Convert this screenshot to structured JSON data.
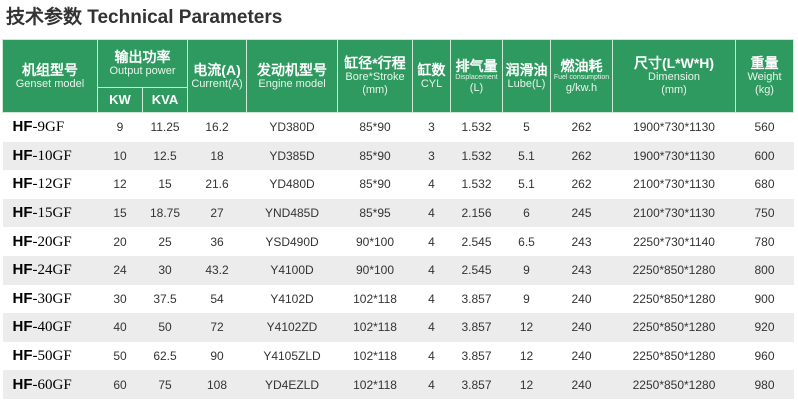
{
  "title": "技术参数 Technical Parameters",
  "colors": {
    "header_bg": "#2f9a60",
    "row_alt": "#ececec"
  },
  "headers": {
    "model": {
      "cn": "机组型号",
      "en": "Genset model"
    },
    "power": {
      "cn": "输出功率",
      "en": "Output power",
      "kw": "KW",
      "kva": "KVA"
    },
    "current": {
      "cn": "电流(A)",
      "en": "Current(A)"
    },
    "engine": {
      "cn": "发动机型号",
      "en": "Engine model"
    },
    "bore": {
      "cn": "缸径*行程",
      "en": "Bore*Stroke",
      "unit": "(mm)"
    },
    "cyl": {
      "cn": "缸数",
      "en": "CYL"
    },
    "disp": {
      "cn": "排气量",
      "en": "Displacement",
      "unit": "(L)"
    },
    "lube": {
      "cn": "润滑油",
      "en": "Lube(L)"
    },
    "fuel": {
      "cn": "燃油耗",
      "en": "Fuel consumption",
      "unit": "g/kw.h"
    },
    "dim": {
      "cn": "尺寸(L*W*H)",
      "en": "Dimension",
      "unit": "(mm)"
    },
    "weight": {
      "cn": "重量",
      "en": "Weight",
      "unit": "(kg)"
    }
  },
  "rows": [
    {
      "prefix": "HF",
      "suffix": "-9GF",
      "kw": "9",
      "kva": "11.25",
      "current": "16.2",
      "engine": "YD380D",
      "bore": "85*90",
      "cyl": "3",
      "disp": "1.532",
      "lube": "5",
      "fuel": "262",
      "dim": "1900*730*1130",
      "weight": "560"
    },
    {
      "prefix": "HF",
      "suffix": "-10GF",
      "kw": "10",
      "kva": "12.5",
      "current": "18",
      "engine": "YD385D",
      "bore": "85*90",
      "cyl": "3",
      "disp": "1.532",
      "lube": "5.1",
      "fuel": "262",
      "dim": "1900*730*1130",
      "weight": "600"
    },
    {
      "prefix": "HF",
      "suffix": "-12GF",
      "kw": "12",
      "kva": "15",
      "current": "21.6",
      "engine": "YD480D",
      "bore": "85*90",
      "cyl": "4",
      "disp": "1.532",
      "lube": "5.1",
      "fuel": "262",
      "dim": "2100*730*1130",
      "weight": "680"
    },
    {
      "prefix": "HF",
      "suffix": "-15GF",
      "kw": "15",
      "kva": "18.75",
      "current": "27",
      "engine": "YND485D",
      "bore": "85*95",
      "cyl": "4",
      "disp": "2.156",
      "lube": "6",
      "fuel": "245",
      "dim": "2100*730*1130",
      "weight": "750"
    },
    {
      "prefix": "HF",
      "suffix": "-20GF",
      "kw": "20",
      "kva": "25",
      "current": "36",
      "engine": "YSD490D",
      "bore": "90*100",
      "cyl": "4",
      "disp": "2.545",
      "lube": "6.5",
      "fuel": "243",
      "dim": "2250*730*1140",
      "weight": "780"
    },
    {
      "prefix": "HF",
      "suffix": "-24GF",
      "kw": "24",
      "kva": "30",
      "current": "43.2",
      "engine": "Y4100D",
      "bore": "90*100",
      "cyl": "4",
      "disp": "2.545",
      "lube": "9",
      "fuel": "243",
      "dim": "2250*850*1280",
      "weight": "800"
    },
    {
      "prefix": "HF",
      "suffix": "-30GF",
      "kw": "30",
      "kva": "37.5",
      "current": "54",
      "engine": "Y4102D",
      "bore": "102*118",
      "cyl": "4",
      "disp": "3.857",
      "lube": "9",
      "fuel": "240",
      "dim": "2250*850*1280",
      "weight": "900"
    },
    {
      "prefix": "HF",
      "suffix": "-40GF",
      "kw": "40",
      "kva": "50",
      "current": "72",
      "engine": "Y4102ZD",
      "bore": "102*118",
      "cyl": "4",
      "disp": "3.857",
      "lube": "12",
      "fuel": "240",
      "dim": "2250*850*1280",
      "weight": "920"
    },
    {
      "prefix": "HF",
      "suffix": "-50GF",
      "kw": "50",
      "kva": "62.5",
      "current": "90",
      "engine": "Y4105ZLD",
      "bore": "102*118",
      "cyl": "4",
      "disp": "3.857",
      "lube": "12",
      "fuel": "240",
      "dim": "2250*850*1280",
      "weight": "960"
    },
    {
      "prefix": "HF",
      "suffix": "-60GF",
      "kw": "60",
      "kva": "75",
      "current": "108",
      "engine": "YD4EZLD",
      "bore": "102*118",
      "cyl": "4",
      "disp": "3.857",
      "lube": "12",
      "fuel": "240",
      "dim": "2250*850*1280",
      "weight": "980"
    }
  ]
}
